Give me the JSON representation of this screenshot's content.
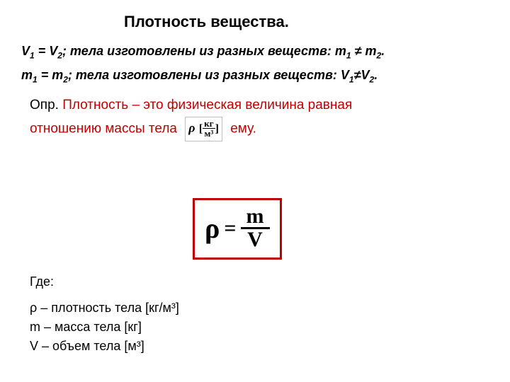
{
  "title": "Плотность вещества.",
  "cond1": {
    "v1": "V",
    "v1sub": "1",
    "eq1": "= ",
    "v2": "V",
    "v2sub": "2",
    "mid": "; тела изготовлены из разных веществ: ",
    "m1": "m",
    "m1sub": "1",
    "neq": " ≠ ",
    "m2": "m",
    "m2sub": "2",
    "end": "."
  },
  "cond2": {
    "m1": "m",
    "m1sub": "1",
    "eq1": "= ",
    "m2": "m",
    "m2sub": "2",
    "mid": "; тела изготовлены из разных веществ: ",
    "v1": "V",
    "v1sub": "1",
    "neq": "≠",
    "v2": "V",
    "v2sub": "2",
    "end": "."
  },
  "definition": {
    "label": "Опр. ",
    "line1": "Плотность – это физическая величина равная",
    "line2a": "отношению массы тела",
    "line2b": "ему.",
    "unit_rho": "ρ",
    "unit_num": "кг",
    "unit_den": "м³",
    "open_br": "[",
    "close_br": "]"
  },
  "formula": {
    "rho": "ρ",
    "eq": "=",
    "num": "m",
    "den": "V",
    "border_color": "#c00000"
  },
  "where": {
    "title": "Где:",
    "l1": "ρ – плотность тела [кг/м³]",
    "l2": "m – масса тела [кг]",
    "l3": "V – объем тела [м³]"
  },
  "colors": {
    "accent_red": "#c00000",
    "text": "#000000",
    "bg": "#ffffff"
  }
}
